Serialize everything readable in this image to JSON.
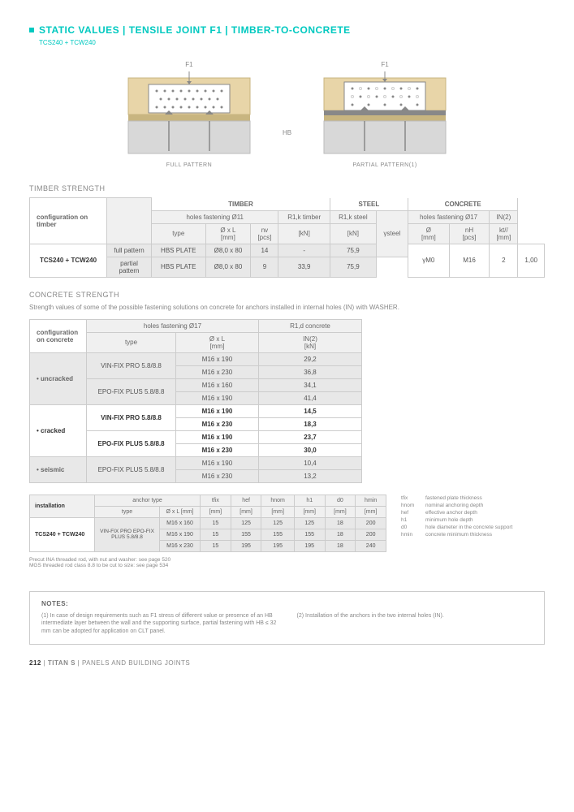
{
  "title": "STATIC VALUES | TENSILE JOINT F1 | TIMBER-TO-CONCRETE",
  "subtitle": "TCS240 + TCW240",
  "diagrams": {
    "f1": "F1",
    "hb": "HB",
    "cap_full": "FULL PATTERN",
    "cap_partial": "PARTIAL PATTERN(1)"
  },
  "timber_strength": {
    "heading": "TIMBER STRENGTH",
    "config_label": "configuration on timber",
    "group_timber": "TIMBER",
    "group_steel": "STEEL",
    "group_concrete": "CONCRETE",
    "holes11": "holes fastening Ø11",
    "holes17": "holes fastening Ø17",
    "r1k_timber": "R1,k timber",
    "r1k_steel": "R1,k steel",
    "in2": "IN(2)",
    "type": "type",
    "dxl": "Ø x L",
    "nv": "nv",
    "d": "Ø",
    "nh": "nH",
    "keff": "kt//",
    "mm": "[mm]",
    "pcs": "[pcs]",
    "kn": "[kN]",
    "gamma": "γsteel",
    "product": "TCS240 + TCW240",
    "full": "full pattern",
    "partial": "partial pattern",
    "hbs": "HBS PLATE",
    "spec": "Ø8,0 x 80",
    "nv_full": "14",
    "nv_partial": "9",
    "r1kt_full": "-",
    "r1kt_partial": "33,9",
    "r1ks": "75,9",
    "gamma_val": "γM0",
    "m16": "M16",
    "nh_val": "2",
    "keff_val": "1,00"
  },
  "concrete_strength": {
    "heading": "CONCRETE STRENGTH",
    "desc": "Strength values of some of the possible fastening solutions on concrete for anchors installed in internal holes (IN) with WASHER.",
    "config_label": "configuration on concrete",
    "holes17": "holes fastening Ø17",
    "r1d": "R1,d concrete",
    "type": "type",
    "dxl": "Ø x L",
    "in2": "IN(2)",
    "mm": "[mm]",
    "kn": "[kN]",
    "uncracked": "• uncracked",
    "cracked": "• cracked",
    "seismic": "• seismic",
    "vinfix": "VIN-FIX PRO 5.8/8.8",
    "epofix": "EPO-FIX PLUS 5.8/8.8",
    "rows": [
      {
        "g": "uncracked",
        "t": "vinfix",
        "s": "M16 x 190",
        "v": "29,2",
        "shade": true
      },
      {
        "g": "uncracked",
        "t": "vinfix",
        "s": "M16 x 230",
        "v": "36,8",
        "shade": true
      },
      {
        "g": "uncracked",
        "t": "epofix",
        "s": "M16 x 160",
        "v": "34,1",
        "shade": true
      },
      {
        "g": "uncracked",
        "t": "epofix",
        "s": "M16 x 190",
        "v": "41,4",
        "shade": true
      },
      {
        "g": "cracked",
        "t": "vinfix",
        "s": "M16 x 190",
        "v": "14,5",
        "shade": false
      },
      {
        "g": "cracked",
        "t": "vinfix",
        "s": "M16 x 230",
        "v": "18,3",
        "shade": false
      },
      {
        "g": "cracked",
        "t": "epofix",
        "s": "M16 x 190",
        "v": "23,7",
        "shade": false
      },
      {
        "g": "cracked",
        "t": "epofix",
        "s": "M16 x 230",
        "v": "30,0",
        "shade": false
      },
      {
        "g": "seismic",
        "t": "epofix",
        "s": "M16 x 190",
        "v": "10,4",
        "shade": true
      },
      {
        "g": "seismic",
        "t": "epofix",
        "s": "M16 x 230",
        "v": "13,2",
        "shade": true
      }
    ]
  },
  "install": {
    "label": "installation",
    "anchor_type": "anchor type",
    "type": "type",
    "dxl": "Ø x L [mm]",
    "tfix": "tfix",
    "hef": "hef",
    "hnom": "hnom",
    "h1": "h1",
    "d0": "d0",
    "hmin": "hmin",
    "mm": "[mm]",
    "product": "TCS240 + TCW240",
    "anchor": "VIN-FIX PRO EPO-FIX PLUS 5.8/8.8",
    "rows": [
      [
        "M16 x 160",
        "15",
        "125",
        "125",
        "125",
        "18",
        "200"
      ],
      [
        "M16 x 190",
        "15",
        "155",
        "155",
        "155",
        "18",
        "200"
      ],
      [
        "M16 x 230",
        "15",
        "195",
        "195",
        "195",
        "18",
        "240"
      ]
    ],
    "foot1": "Precut INA threaded rod, with nut and washer: see page 520",
    "foot2": "MGS threaded rod class 8.8 to be cut to size: see page 534"
  },
  "legend": [
    [
      "tfix",
      "fastened plate thickness"
    ],
    [
      "hnom",
      "nominal anchoring depth"
    ],
    [
      "hef",
      "effective anchor depth"
    ],
    [
      "h1",
      "minimum hole depth"
    ],
    [
      "d0",
      "hole diameter in the concrete support"
    ],
    [
      "hmin",
      "concrete minimum thickness"
    ]
  ],
  "notes": {
    "heading": "NOTES:",
    "n1": "(1) In case of design requirements such as F1 stress of different value or presence of an HB intermediate layer between the wall and the supporting surface, partial fastening with HB ≤ 32 mm can be adopted for application on CLT panel.",
    "n2": "(2) Installation of the anchors in the two internal holes (IN)."
  },
  "footer": {
    "page": "212",
    "sep": " | ",
    "t1": "TITAN S",
    "t2": "PANELS AND BUILDING JOINTS"
  }
}
